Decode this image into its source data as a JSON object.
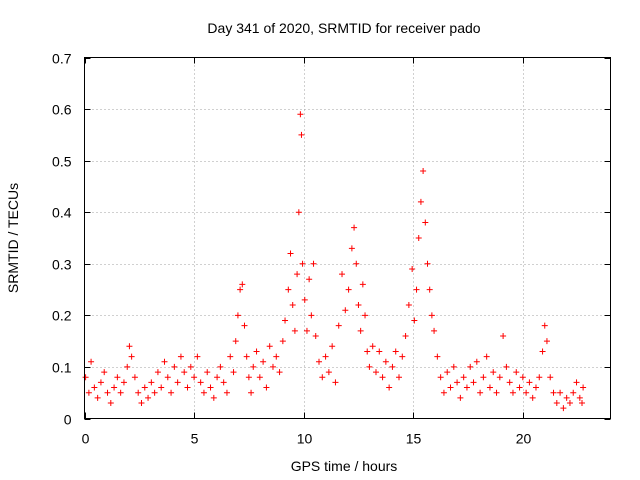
{
  "chart_data": {
    "type": "scatter",
    "title": "Day 341 of 2020, SRMTID for receiver pado",
    "xlabel": "GPS time / hours",
    "ylabel": "SRMTID / TECUs",
    "xlim": [
      0,
      24
    ],
    "ylim": [
      0,
      0.7
    ],
    "xticks": [
      0,
      5,
      10,
      15,
      20
    ],
    "yticks": [
      0,
      0.1,
      0.2,
      0.3,
      0.4,
      0.5,
      0.6,
      0.7
    ],
    "xtick_labels": [
      "0",
      "5",
      "10",
      "15",
      "20"
    ],
    "ytick_labels": [
      "0",
      "0.1",
      "0.2",
      "0.3",
      "0.4",
      "0.5",
      "0.6",
      "0.7"
    ],
    "grid": true,
    "marker": "+",
    "color": "#ff0000",
    "series": [
      {
        "name": "SRMTID",
        "points": [
          [
            0.05,
            0.08
          ],
          [
            0.2,
            0.05
          ],
          [
            0.3,
            0.11
          ],
          [
            0.45,
            0.06
          ],
          [
            0.6,
            0.04
          ],
          [
            0.75,
            0.07
          ],
          [
            0.9,
            0.09
          ],
          [
            1.05,
            0.05
          ],
          [
            1.2,
            0.03
          ],
          [
            1.35,
            0.06
          ],
          [
            1.5,
            0.08
          ],
          [
            1.65,
            0.05
          ],
          [
            1.8,
            0.07
          ],
          [
            1.95,
            0.1
          ],
          [
            2.05,
            0.14
          ],
          [
            2.15,
            0.12
          ],
          [
            2.3,
            0.08
          ],
          [
            2.45,
            0.05
          ],
          [
            2.6,
            0.03
          ],
          [
            2.75,
            0.06
          ],
          [
            2.9,
            0.04
          ],
          [
            3.05,
            0.07
          ],
          [
            3.2,
            0.05
          ],
          [
            3.35,
            0.09
          ],
          [
            3.5,
            0.06
          ],
          [
            3.65,
            0.11
          ],
          [
            3.8,
            0.08
          ],
          [
            3.95,
            0.05
          ],
          [
            4.1,
            0.1
          ],
          [
            4.25,
            0.07
          ],
          [
            4.4,
            0.12
          ],
          [
            4.55,
            0.09
          ],
          [
            4.7,
            0.06
          ],
          [
            4.85,
            0.1
          ],
          [
            5.0,
            0.08
          ],
          [
            5.15,
            0.12
          ],
          [
            5.3,
            0.07
          ],
          [
            5.45,
            0.05
          ],
          [
            5.6,
            0.09
          ],
          [
            5.75,
            0.06
          ],
          [
            5.9,
            0.04
          ],
          [
            6.05,
            0.08
          ],
          [
            6.2,
            0.1
          ],
          [
            6.35,
            0.07
          ],
          [
            6.5,
            0.05
          ],
          [
            6.65,
            0.12
          ],
          [
            6.8,
            0.09
          ],
          [
            6.9,
            0.15
          ],
          [
            7.0,
            0.2
          ],
          [
            7.1,
            0.25
          ],
          [
            7.2,
            0.26
          ],
          [
            7.3,
            0.18
          ],
          [
            7.4,
            0.12
          ],
          [
            7.5,
            0.08
          ],
          [
            7.6,
            0.05
          ],
          [
            7.7,
            0.1
          ],
          [
            7.85,
            0.13
          ],
          [
            8.0,
            0.08
          ],
          [
            8.15,
            0.11
          ],
          [
            8.3,
            0.06
          ],
          [
            8.45,
            0.14
          ],
          [
            8.6,
            0.1
          ],
          [
            8.75,
            0.12
          ],
          [
            8.9,
            0.09
          ],
          [
            9.05,
            0.15
          ],
          [
            9.15,
            0.19
          ],
          [
            9.3,
            0.25
          ],
          [
            9.4,
            0.32
          ],
          [
            9.5,
            0.22
          ],
          [
            9.6,
            0.17
          ],
          [
            9.7,
            0.28
          ],
          [
            9.78,
            0.4
          ],
          [
            9.85,
            0.59
          ],
          [
            9.9,
            0.55
          ],
          [
            9.95,
            0.3
          ],
          [
            10.05,
            0.23
          ],
          [
            10.15,
            0.17
          ],
          [
            10.25,
            0.27
          ],
          [
            10.35,
            0.2
          ],
          [
            10.45,
            0.3
          ],
          [
            10.55,
            0.16
          ],
          [
            10.7,
            0.11
          ],
          [
            10.85,
            0.08
          ],
          [
            11.0,
            0.12
          ],
          [
            11.15,
            0.09
          ],
          [
            11.3,
            0.14
          ],
          [
            11.45,
            0.07
          ],
          [
            11.6,
            0.18
          ],
          [
            11.75,
            0.28
          ],
          [
            11.9,
            0.21
          ],
          [
            12.05,
            0.25
          ],
          [
            12.2,
            0.33
          ],
          [
            12.3,
            0.37
          ],
          [
            12.4,
            0.3
          ],
          [
            12.5,
            0.22
          ],
          [
            12.6,
            0.17
          ],
          [
            12.7,
            0.26
          ],
          [
            12.8,
            0.2
          ],
          [
            12.9,
            0.13
          ],
          [
            13.0,
            0.1
          ],
          [
            13.15,
            0.14
          ],
          [
            13.3,
            0.09
          ],
          [
            13.45,
            0.13
          ],
          [
            13.6,
            0.08
          ],
          [
            13.75,
            0.11
          ],
          [
            13.9,
            0.06
          ],
          [
            14.05,
            0.1
          ],
          [
            14.2,
            0.13
          ],
          [
            14.35,
            0.08
          ],
          [
            14.5,
            0.12
          ],
          [
            14.65,
            0.16
          ],
          [
            14.8,
            0.22
          ],
          [
            14.95,
            0.29
          ],
          [
            15.05,
            0.19
          ],
          [
            15.15,
            0.25
          ],
          [
            15.25,
            0.35
          ],
          [
            15.35,
            0.42
          ],
          [
            15.45,
            0.48
          ],
          [
            15.55,
            0.38
          ],
          [
            15.65,
            0.3
          ],
          [
            15.75,
            0.25
          ],
          [
            15.85,
            0.2
          ],
          [
            15.95,
            0.17
          ],
          [
            16.1,
            0.12
          ],
          [
            16.25,
            0.08
          ],
          [
            16.4,
            0.05
          ],
          [
            16.55,
            0.09
          ],
          [
            16.7,
            0.06
          ],
          [
            16.85,
            0.1
          ],
          [
            17.0,
            0.07
          ],
          [
            17.15,
            0.04
          ],
          [
            17.3,
            0.08
          ],
          [
            17.45,
            0.06
          ],
          [
            17.6,
            0.1
          ],
          [
            17.75,
            0.07
          ],
          [
            17.9,
            0.11
          ],
          [
            18.05,
            0.05
          ],
          [
            18.2,
            0.08
          ],
          [
            18.35,
            0.12
          ],
          [
            18.5,
            0.06
          ],
          [
            18.65,
            0.09
          ],
          [
            18.8,
            0.05
          ],
          [
            18.95,
            0.08
          ],
          [
            19.1,
            0.16
          ],
          [
            19.25,
            0.1
          ],
          [
            19.4,
            0.07
          ],
          [
            19.55,
            0.05
          ],
          [
            19.7,
            0.09
          ],
          [
            19.85,
            0.06
          ],
          [
            20.0,
            0.08
          ],
          [
            20.15,
            0.05
          ],
          [
            20.3,
            0.07
          ],
          [
            20.45,
            0.04
          ],
          [
            20.6,
            0.06
          ],
          [
            20.75,
            0.08
          ],
          [
            20.9,
            0.13
          ],
          [
            21.0,
            0.18
          ],
          [
            21.1,
            0.15
          ],
          [
            21.25,
            0.08
          ],
          [
            21.4,
            0.05
          ],
          [
            21.55,
            0.03
          ],
          [
            21.7,
            0.05
          ],
          [
            21.85,
            0.02
          ],
          [
            22.0,
            0.04
          ],
          [
            22.15,
            0.03
          ],
          [
            22.3,
            0.05
          ],
          [
            22.45,
            0.07
          ],
          [
            22.6,
            0.04
          ],
          [
            22.7,
            0.03
          ],
          [
            22.75,
            0.06
          ]
        ]
      }
    ]
  }
}
